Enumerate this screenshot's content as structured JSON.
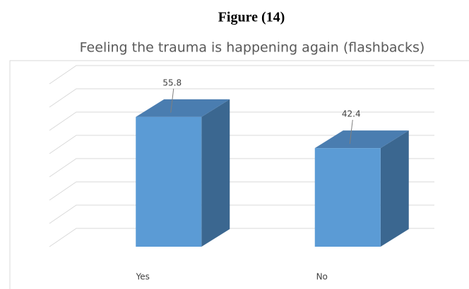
{
  "figure_label": "Figure (14)",
  "chart_data": {
    "type": "bar3d",
    "title": "Feeling the trauma is happening again (flashbacks)",
    "categories": [
      "Yes",
      "No"
    ],
    "values": [
      55.8,
      42.4
    ],
    "color": "#5b9bd5",
    "ylim": [
      0,
      70
    ],
    "yticks": [
      0,
      10,
      20,
      30,
      40,
      50,
      60,
      70
    ],
    "grid": true
  }
}
